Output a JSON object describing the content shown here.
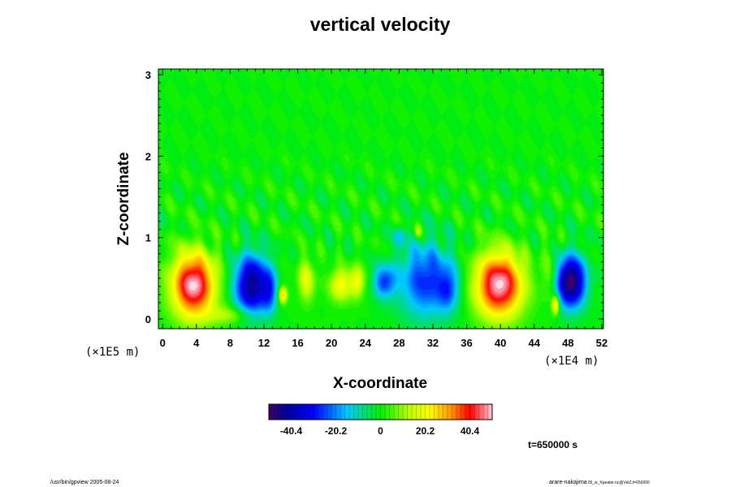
{
  "chart_data": {
    "type": "heatmap",
    "title": "vertical velocity",
    "xlabel": "X-coordinate",
    "ylabel": "Z-coordinate",
    "x_scale_label": "(×1E4 m)",
    "y_scale_label": "(×1E5 m)",
    "xlim": [
      -0.5,
      52.2
    ],
    "ylim": [
      -0.12,
      3.07
    ],
    "x_ticks": [
      0,
      4,
      8,
      12,
      16,
      20,
      24,
      28,
      32,
      36,
      40,
      44,
      48,
      52
    ],
    "y_ticks": [
      0,
      1,
      2,
      3
    ],
    "colorbar": {
      "min": -50.5,
      "max": 50.5,
      "ticks": [
        -40.4,
        -20.2,
        0,
        20.2,
        40.4
      ],
      "tick_labels": [
        "-40.4",
        "-20.2",
        "0",
        "20.2",
        "40.4"
      ]
    },
    "features": [
      {
        "x": 3.6,
        "z": 0.42,
        "peak": 50,
        "sx": 1.8,
        "sz": 0.28
      },
      {
        "x": 10.5,
        "z": 0.42,
        "peak": -45,
        "sx": 1.4,
        "sz": 0.26
      },
      {
        "x": 12.6,
        "z": 0.35,
        "peak": -20,
        "sx": 0.6,
        "sz": 0.2
      },
      {
        "x": 14.2,
        "z": 0.3,
        "peak": 28,
        "sx": 0.35,
        "sz": 0.07
      },
      {
        "x": 17.0,
        "z": 0.48,
        "peak": 18,
        "sx": 0.7,
        "sz": 0.18
      },
      {
        "x": 21.0,
        "z": 0.42,
        "peak": 22,
        "sx": 0.9,
        "sz": 0.14
      },
      {
        "x": 23.0,
        "z": 0.46,
        "peak": 20,
        "sx": 0.6,
        "sz": 0.14
      },
      {
        "x": 26.2,
        "z": 0.46,
        "peak": -25,
        "sx": 0.9,
        "sz": 0.14
      },
      {
        "x": 31.2,
        "z": 0.48,
        "peak": -28,
        "sx": 2.3,
        "sz": 0.32
      },
      {
        "x": 33.8,
        "z": 0.36,
        "peak": -16,
        "sx": 0.8,
        "sz": 0.18
      },
      {
        "x": 39.8,
        "z": 0.42,
        "peak": 50,
        "sx": 2.0,
        "sz": 0.28
      },
      {
        "x": 48.3,
        "z": 0.46,
        "peak": -52,
        "sx": 1.2,
        "sz": 0.22
      },
      {
        "x": 46.5,
        "z": 0.18,
        "peak": 30,
        "sx": 0.3,
        "sz": 0.08
      },
      {
        "x": 45.8,
        "z": 0.55,
        "peak": 8,
        "sx": 0.6,
        "sz": 0.25
      },
      {
        "x": 8.0,
        "z": 0.05,
        "peak": 12,
        "sx": 2.0,
        "sz": 0.08
      },
      {
        "x": 28.0,
        "z": 1.02,
        "peak": -12,
        "sx": 0.5,
        "sz": 0.08
      },
      {
        "x": 30.2,
        "z": 1.08,
        "peak": 14,
        "sx": 0.3,
        "sz": 0.06
      }
    ],
    "annotation_time": "t=650000 s"
  },
  "footer": {
    "left": "/usr/bin/gpview 2005-08-24",
    "right_main": "arare-nakajima",
    "right_small": "05_w_Xpeater.nc@VelZ,t=650000"
  }
}
